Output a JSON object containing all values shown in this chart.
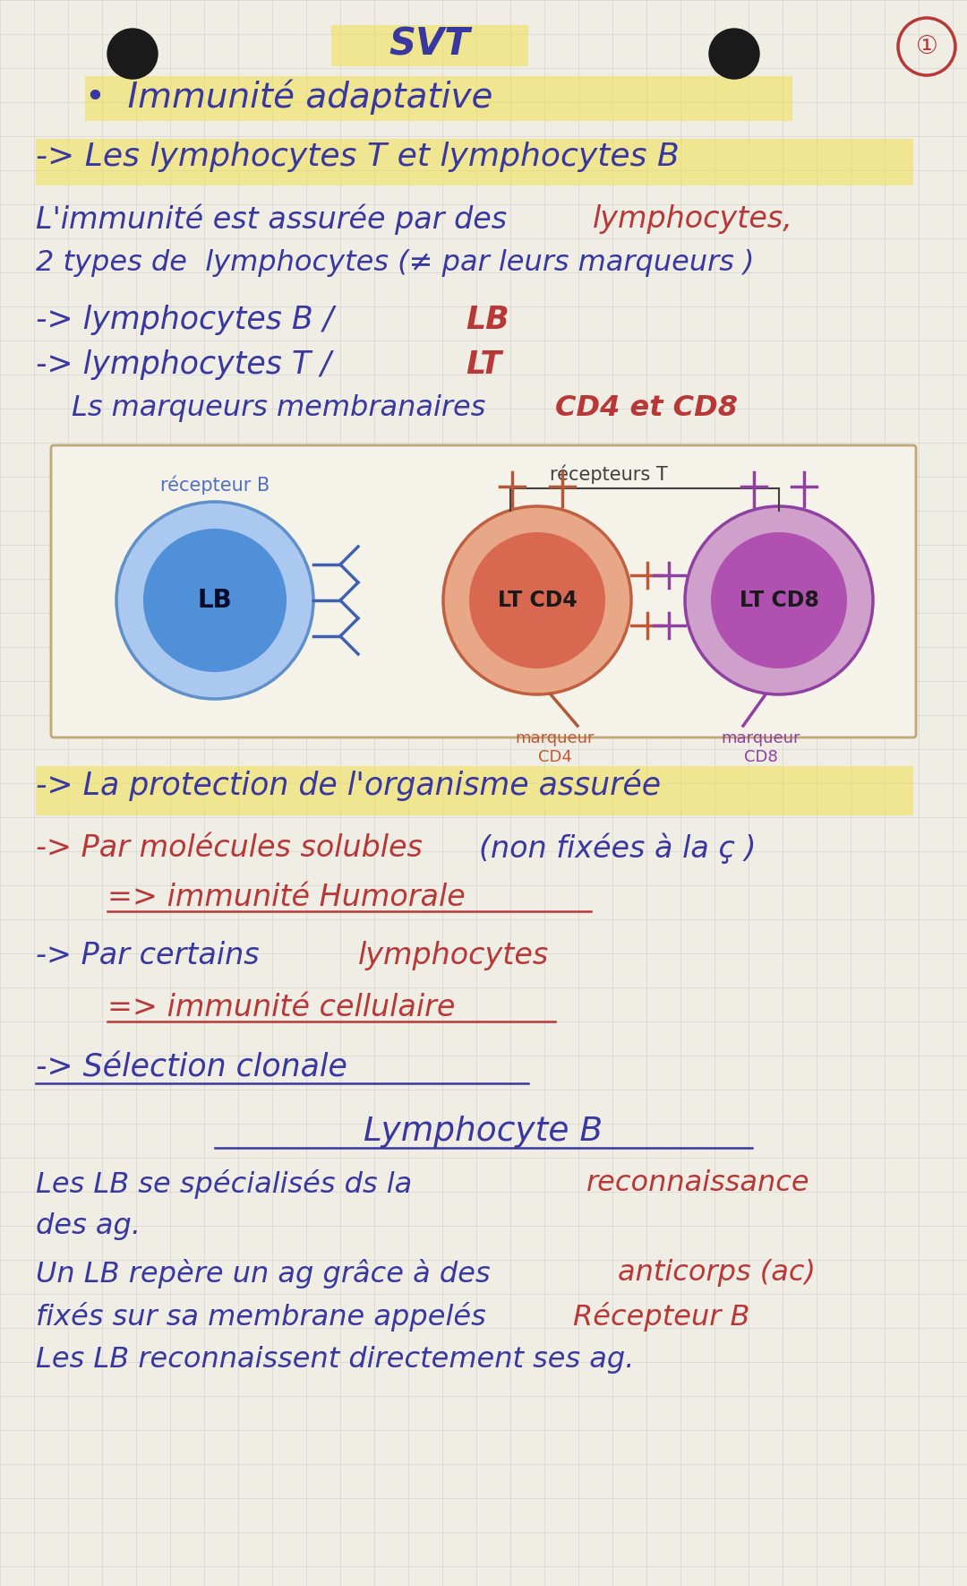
{
  "bg_color": "#f0ede4",
  "grid_color": "#c0c0cc",
  "cell1_outer": "#aac8f0",
  "cell1_inner": "#5090d8",
  "cell2_outer": "#e8a888",
  "cell2_inner": "#d86850",
  "cell3_outer": "#d0a0cc",
  "cell3_inner": "#b050b0",
  "highlight_yellow": "#f0e040",
  "ink_blue": "#3838a0",
  "ink_red": "#b83838",
  "ink_dark": "#282848",
  "hole_color": "#1a1a1a",
  "box_face": "#f5f2ea",
  "box_edge": "#c0a878"
}
